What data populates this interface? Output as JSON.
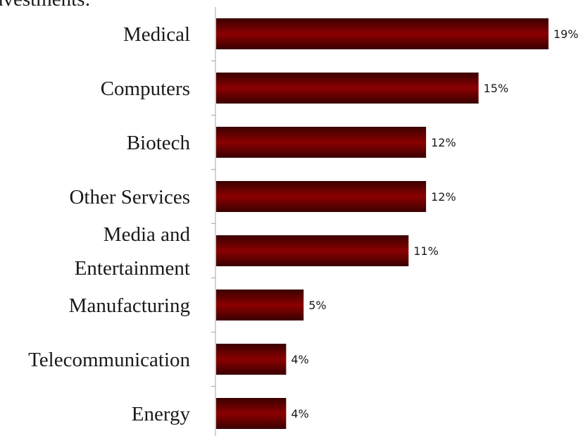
{
  "header": {
    "title_fragment": "nvestments:"
  },
  "colors": {
    "bar_dark": "#3a0000",
    "bar_mid": "#8b0000",
    "axis": "#a6a6a6"
  },
  "chart_data": {
    "type": "bar",
    "orientation": "horizontal",
    "categories": [
      [
        "Medical"
      ],
      [
        "Computers"
      ],
      [
        "Biotech"
      ],
      [
        "Other Services"
      ],
      [
        "Media and",
        "Entertainment"
      ],
      [
        "Manufacturing"
      ],
      [
        "Telecommunication"
      ],
      [
        "Energy"
      ]
    ],
    "values": [
      19,
      15,
      12,
      12,
      11,
      5,
      4,
      4
    ],
    "data_labels": [
      "19%",
      "15%",
      "12%",
      "12%",
      "11%",
      "5%",
      "4%",
      "4%"
    ],
    "unit": "%",
    "xlim": [
      0,
      19
    ],
    "grid": false,
    "legend": "none"
  }
}
